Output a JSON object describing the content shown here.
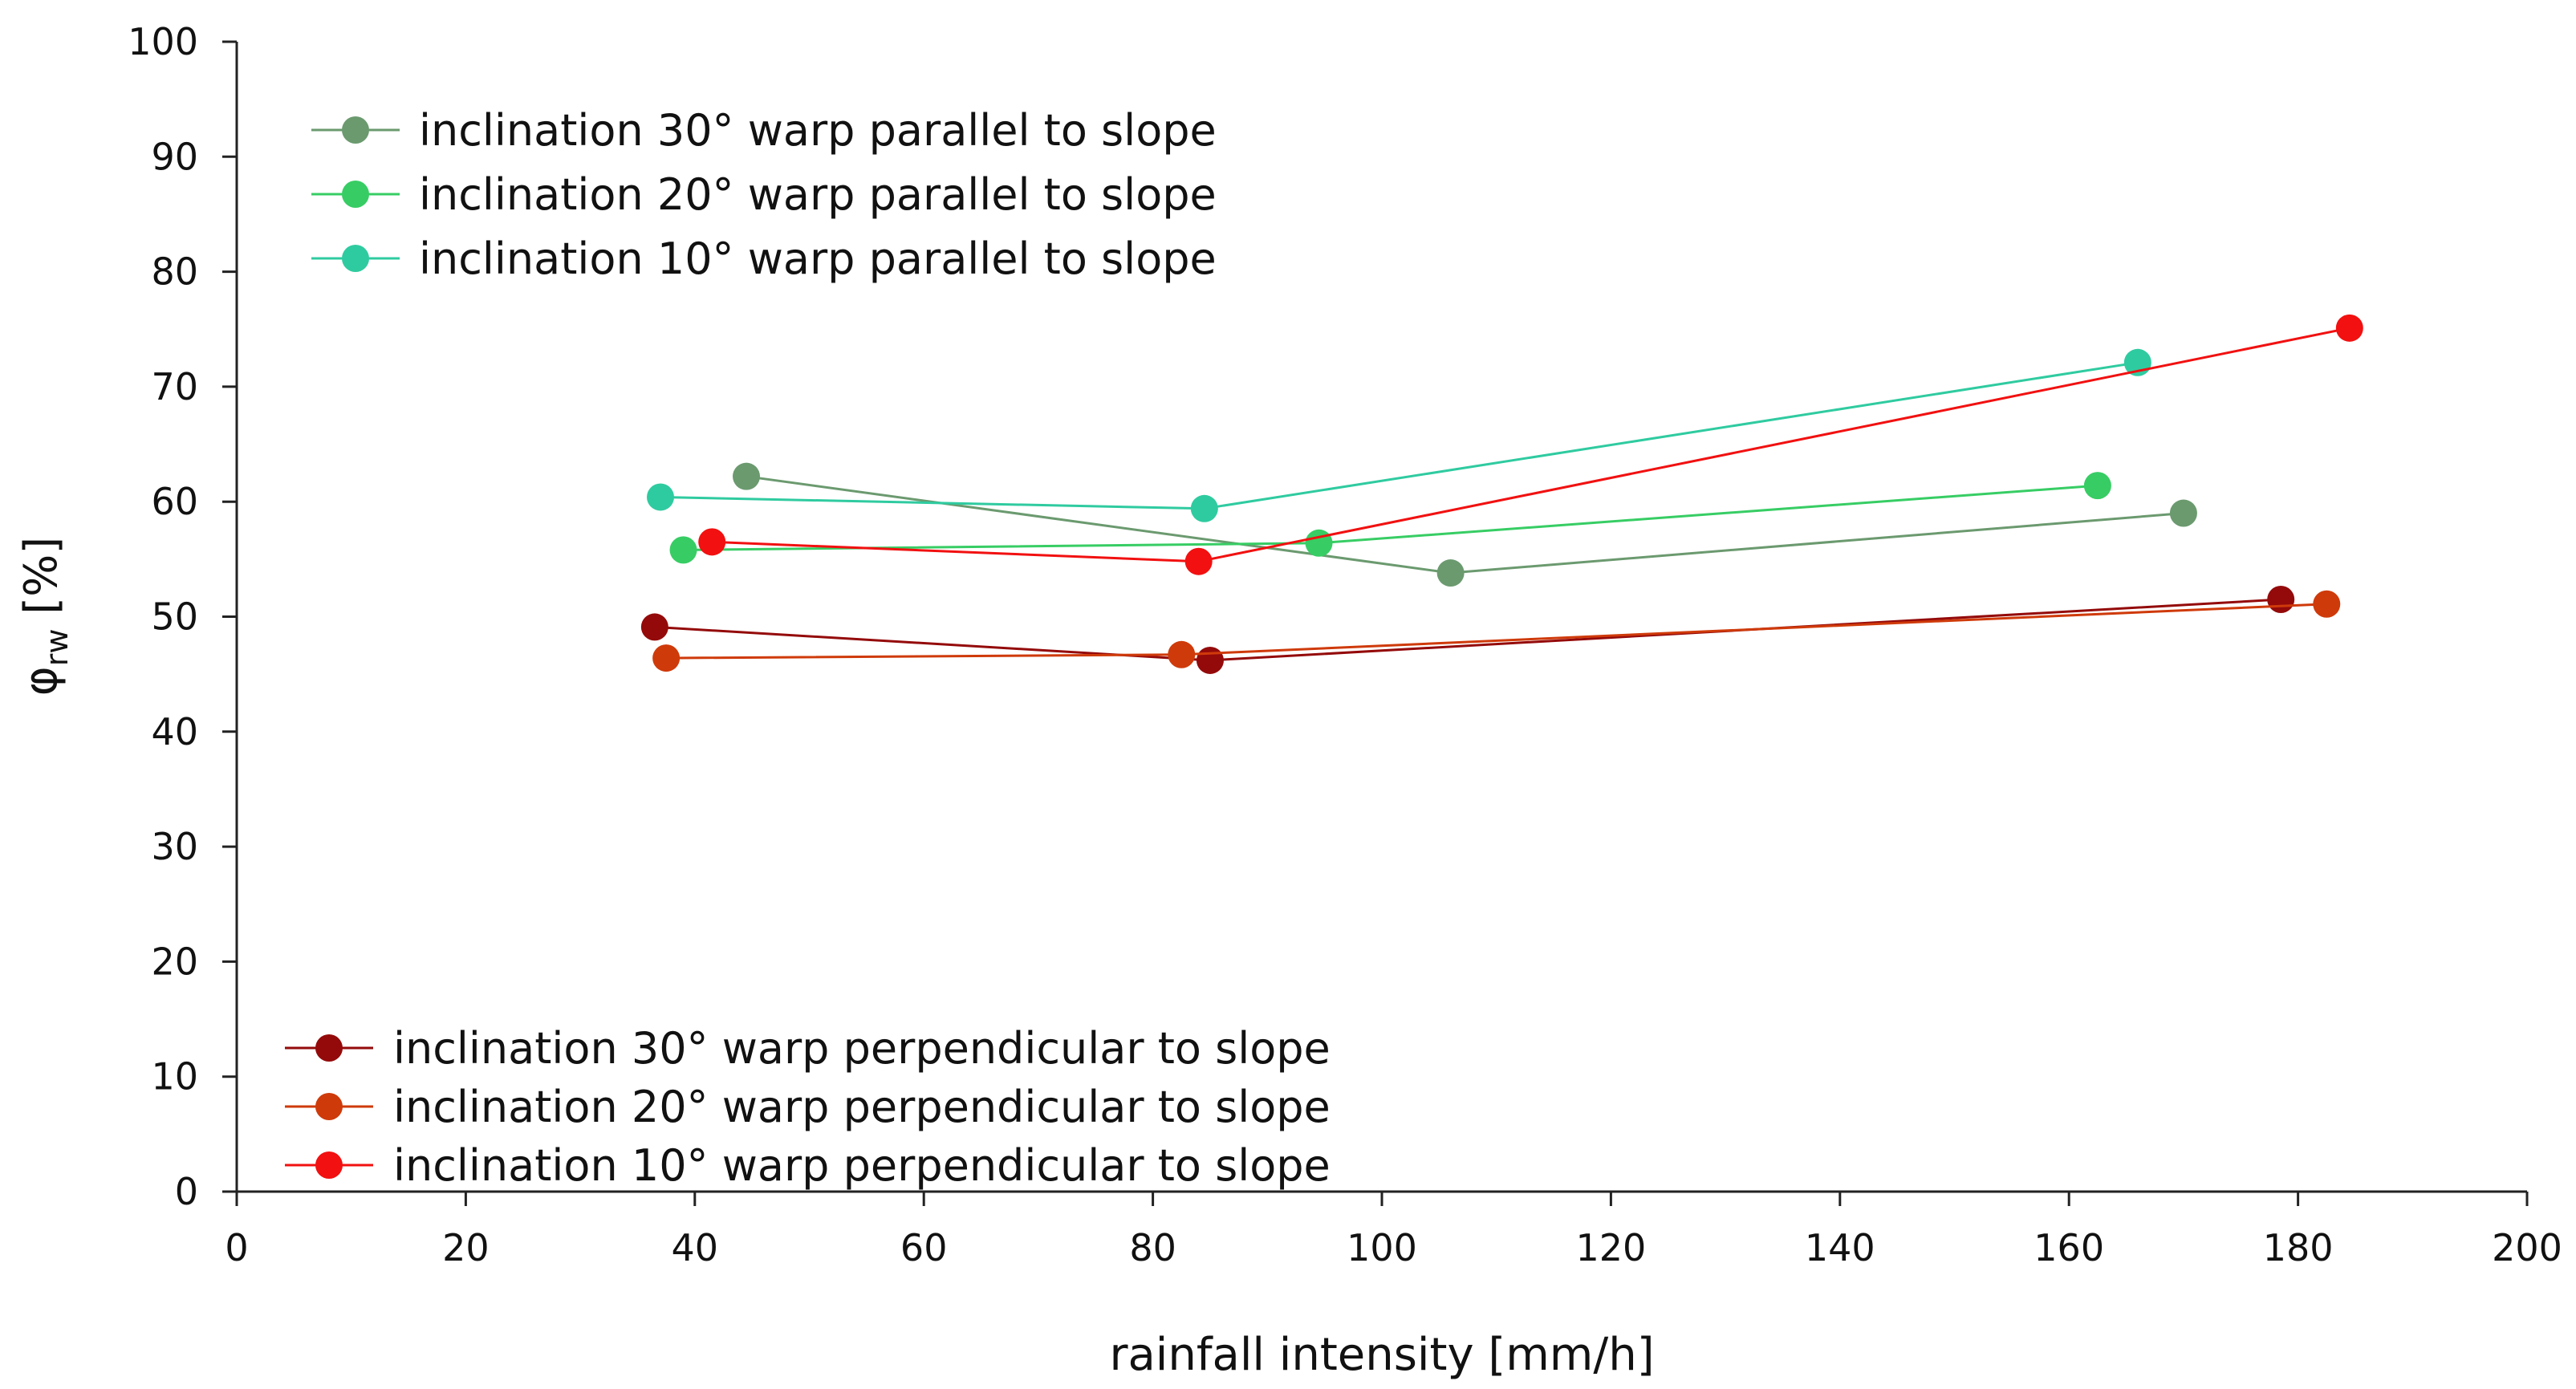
{
  "chart_data": {
    "type": "line",
    "title": "",
    "xlabel": "rainfall intensity [mm/h]",
    "ylabel": {
      "symbol": "φ",
      "subscript": "rw",
      "unit": " [%]"
    },
    "xlim": [
      0,
      200
    ],
    "ylim": [
      0,
      100
    ],
    "xticks": [
      0,
      20,
      40,
      60,
      80,
      100,
      120,
      140,
      160,
      180,
      200
    ],
    "yticks": [
      0,
      10,
      20,
      30,
      40,
      50,
      60,
      70,
      80,
      90,
      100
    ],
    "grid": false,
    "legends": [
      {
        "placement": "top-left",
        "series_indices": [
          0,
          1,
          2
        ]
      },
      {
        "placement": "bottom-left",
        "series_indices": [
          3,
          4,
          5
        ]
      }
    ],
    "series": [
      {
        "name": "inclination 30° warp parallel to slope",
        "color": "#6b9a6f",
        "x": [
          44.5,
          106,
          170
        ],
        "y": [
          62.2,
          53.8,
          59
        ]
      },
      {
        "name": "inclination 20° warp parallel to slope",
        "color": "#37cd64",
        "x": [
          39,
          94.5,
          162.5
        ],
        "y": [
          55.8,
          56.4,
          61.4
        ]
      },
      {
        "name": "inclination 10° warp parallel to slope",
        "color": "#2fcba0",
        "x": [
          37,
          84.5,
          166
        ],
        "y": [
          60.4,
          59.4,
          72.1
        ]
      },
      {
        "name": "inclination 30° warp perpendicular to slope",
        "color": "#940a0a",
        "x": [
          36.5,
          85,
          178.5
        ],
        "y": [
          49.1,
          46.2,
          51.5
        ]
      },
      {
        "name": "inclination 20° warp perpendicular to slope",
        "color": "#cf3a0a",
        "x": [
          37.5,
          82.5,
          182.5
        ],
        "y": [
          46.4,
          46.7,
          51.1
        ]
      },
      {
        "name": "inclination 10° warp perpendicular to slope",
        "color": "#f21010",
        "x": [
          41.5,
          84,
          184.5
        ],
        "y": [
          56.5,
          54.8,
          75.1
        ]
      }
    ]
  }
}
